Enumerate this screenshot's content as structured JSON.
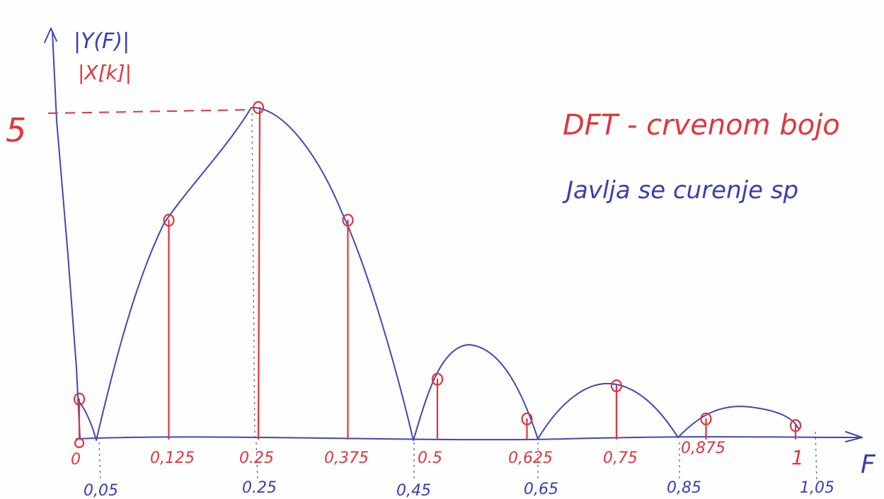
{
  "y_axis_label_blue": "|Y(F)|",
  "y_axis_label_red": "|X[k]|",
  "x_axis_label": "F",
  "y_tick_value": "5",
  "annotation_line1": "DFT - crvenom bojo",
  "annotation_line2": "Javlja se curenje sp",
  "chart_data": {
    "type": "line",
    "xlabel": "F",
    "ylabel": "|Y(F)| , |X[k]|",
    "ylim": [
      0,
      5
    ],
    "continuous_curve": {
      "color": "blue",
      "zeros": [
        0.05,
        0.45,
        0.65,
        0.85,
        1.05
      ],
      "peak": {
        "x": 0.25,
        "y": 5
      },
      "zero_labels": [
        "0,05",
        "0.25",
        "0,45",
        "0,65",
        "0,85",
        "1,05"
      ]
    },
    "dft_samples": {
      "color": "red",
      "x_labels": [
        "0",
        "0,125",
        "0.25",
        "0,375",
        "0.5",
        "0,625",
        "0,75",
        "0,875",
        "1"
      ],
      "x": [
        0,
        0.125,
        0.25,
        0.375,
        0.5,
        0.625,
        0.75,
        0.875,
        1
      ],
      "y": [
        0.6,
        3.3,
        5.0,
        3.3,
        0.9,
        0.3,
        0.8,
        0.3,
        0.2
      ]
    }
  }
}
